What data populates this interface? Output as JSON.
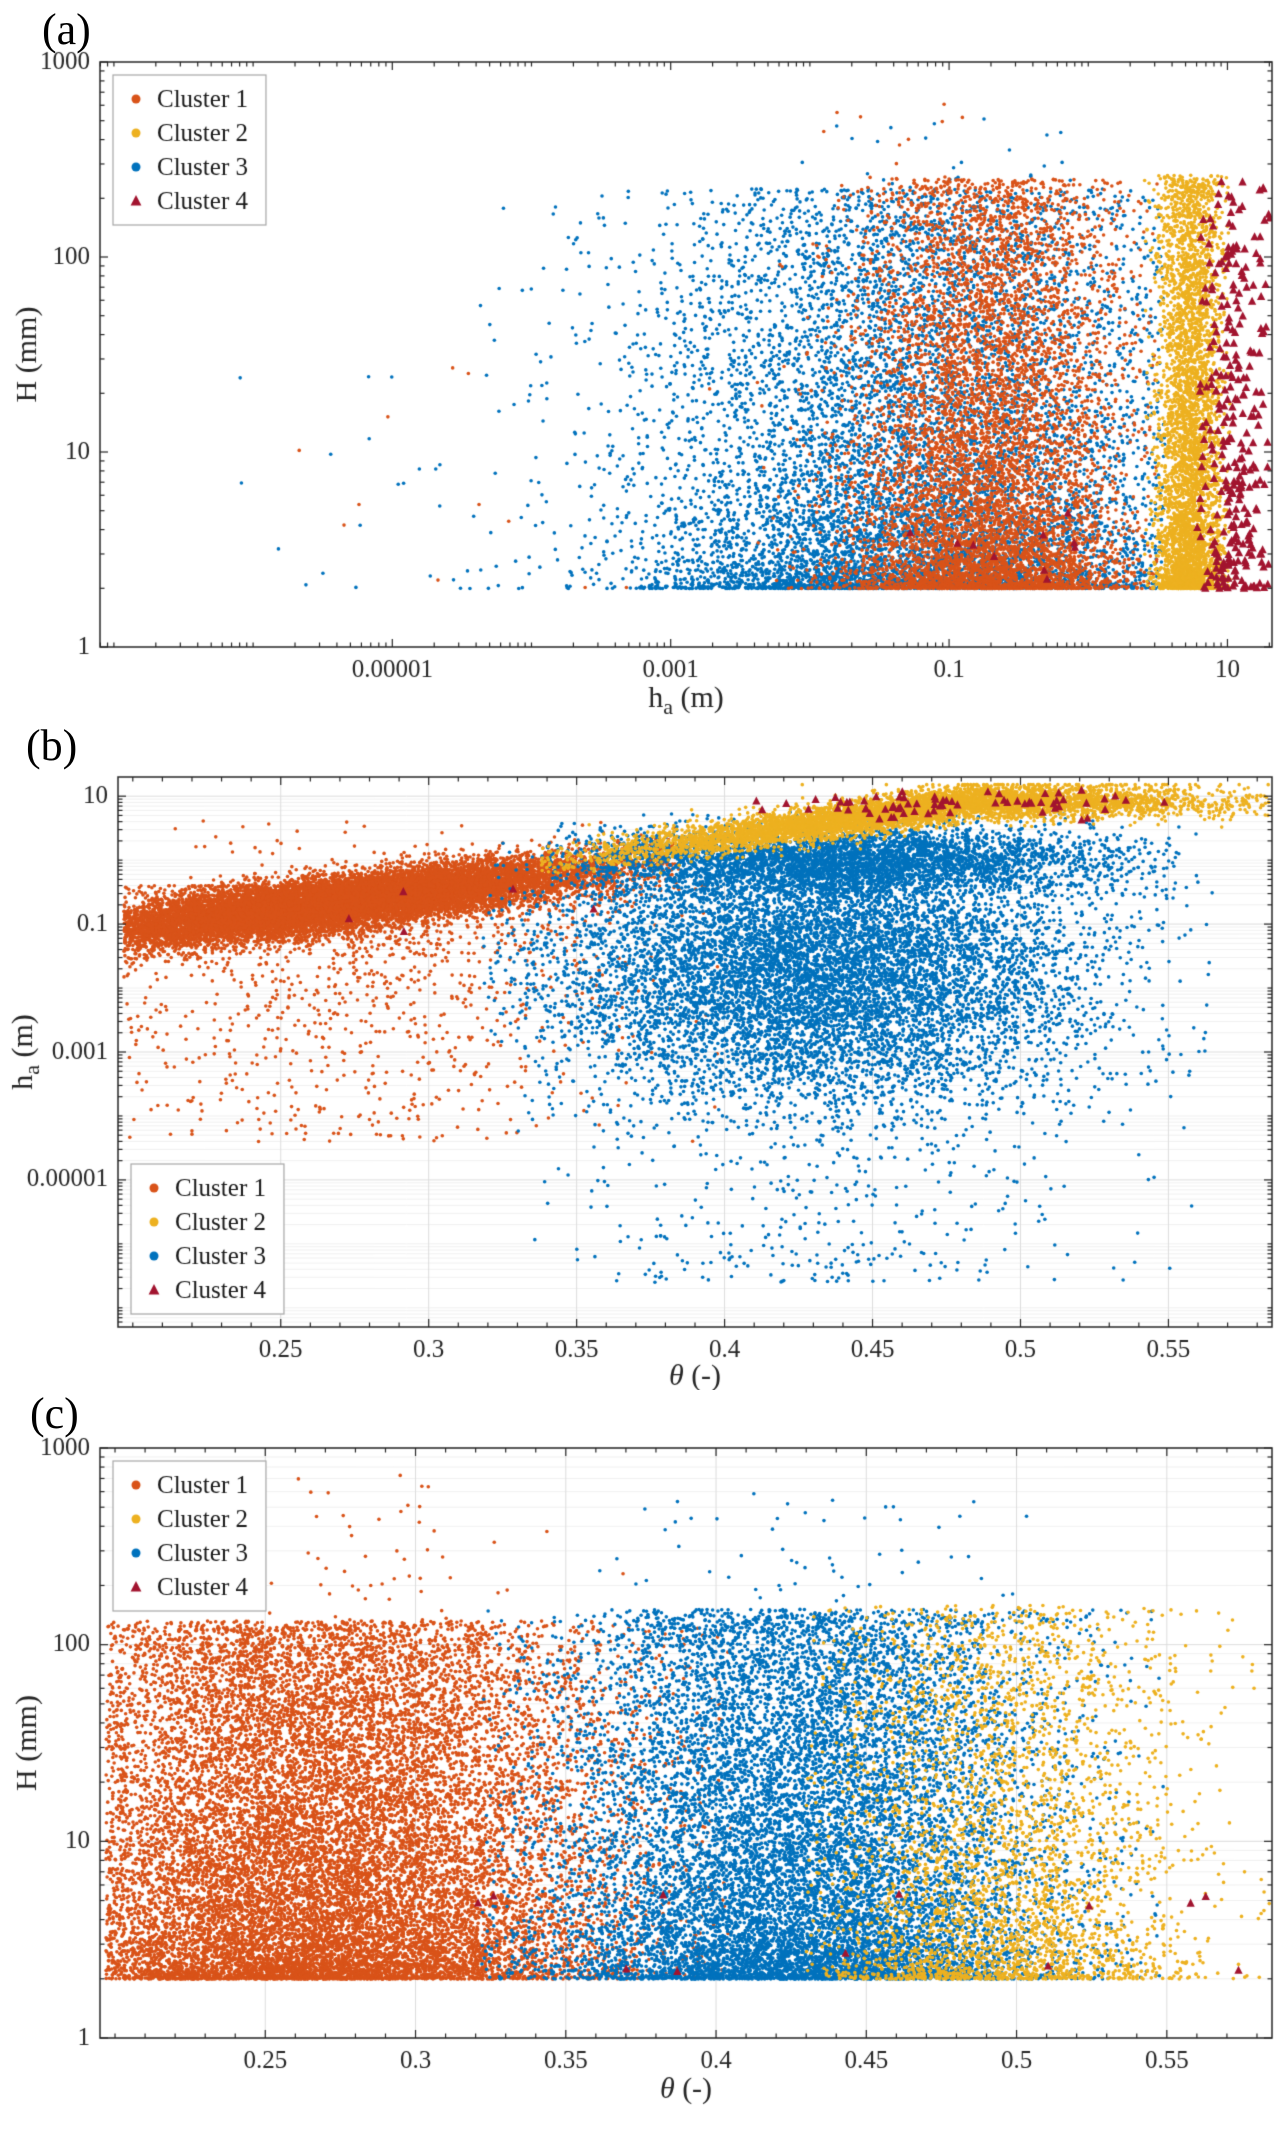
{
  "colors": {
    "cluster1": "#D95319",
    "cluster2": "#EDB120",
    "cluster3": "#0072BD",
    "cluster4": "#A2142F",
    "axis": "#262626",
    "tick_label": "#262626",
    "grid_major": "#dcdcdc",
    "grid_minor": "#f0f0f0",
    "legend_border": "#a6a6a6",
    "legend_text": "#1a1a1a"
  },
  "legend_entries": [
    {
      "label": "Cluster 1",
      "color": "cluster1",
      "marker": "dot"
    },
    {
      "label": "Cluster 2",
      "color": "cluster2",
      "marker": "dot"
    },
    {
      "label": "Cluster 3",
      "color": "cluster3",
      "marker": "dot"
    },
    {
      "label": "Cluster 4",
      "color": "cluster4",
      "marker": "triangle"
    }
  ],
  "chart_data": {
    "type": "scatter",
    "panels": [
      {
        "id": "a",
        "label": "(a)",
        "xscale": "log",
        "yscale": "log",
        "xlim_log10": [
          -7.1,
          1.32
        ],
        "ylim_log10": [
          0,
          3
        ],
        "xticks": [
          {
            "v": -5,
            "label": "0.00001"
          },
          {
            "v": -3,
            "label": "0.001"
          },
          {
            "v": -1,
            "label": "0.1"
          },
          {
            "v": 1,
            "label": "10"
          }
        ],
        "yticks": [
          {
            "v": 0,
            "label": "1"
          },
          {
            "v": 1,
            "label": "10"
          },
          {
            "v": 2,
            "label": "100"
          },
          {
            "v": 3,
            "label": "1000"
          }
        ],
        "xlabel_parts": [
          {
            "t": "h"
          },
          {
            "t": "a",
            "sub": true
          },
          {
            "t": " (m)"
          }
        ],
        "ylabel_parts": [
          {
            "t": "H (mm)"
          }
        ],
        "grid": false,
        "legend_pos": "top-left",
        "clusters": [
          {
            "name": "Cluster 3",
            "color": "cluster3",
            "marker": "dot",
            "n": 25,
            "seed": 11,
            "x": {
              "dist": "uniform",
              "min": -6.3,
              "max": -3.6
            },
            "y": {
              "dist": "powlow",
              "min": 0.3,
              "max": 1.7,
              "pow": 1.5
            }
          },
          {
            "name": "Cluster 3",
            "color": "cluster3",
            "marker": "dot",
            "n": 9000,
            "seed": 12,
            "x": {
              "dist": "normal",
              "mean": -1.25,
              "sd": 1.0,
              "clip": [
                -4.6,
                0.55
              ]
            },
            "y": {
              "dist": "powlow",
              "min": 0.3,
              "max": 2.35,
              "pow": 1.9
            }
          },
          {
            "name": "Cluster 3",
            "color": "cluster3",
            "marker": "dot",
            "n": 25,
            "seed": 13,
            "x": {
              "dist": "normal",
              "mean": -1.0,
              "sd": 0.6,
              "clip": [
                -2.5,
                0.2
              ]
            },
            "y": {
              "dist": "uniform",
              "min": 2.35,
              "max": 2.72
            }
          },
          {
            "name": "Cluster 1",
            "color": "cluster1",
            "marker": "dot",
            "n": 12,
            "seed": 14,
            "x": {
              "dist": "uniform",
              "min": -5.9,
              "max": -2.5
            },
            "y": {
              "dist": "powlow",
              "min": 0.3,
              "max": 1.5,
              "pow": 1.2
            }
          },
          {
            "name": "Cluster 1",
            "color": "cluster1",
            "marker": "dot",
            "n": 7000,
            "seed": 15,
            "x": {
              "dist": "normal",
              "mean": -0.72,
              "sd": 0.5,
              "clip": [
                -2.4,
                0.5
              ]
            },
            "y": {
              "dist": "powlow",
              "min": 0.3,
              "max": 2.4,
              "pow": 1.8
            }
          },
          {
            "name": "Cluster 1",
            "color": "cluster1",
            "marker": "dot",
            "n": 12,
            "seed": 16,
            "x": {
              "dist": "normal",
              "mean": -1.2,
              "sd": 0.5,
              "clip": [
                -2.2,
                -0.2
              ]
            },
            "y": {
              "dist": "uniform",
              "min": 2.4,
              "max": 2.82
            }
          },
          {
            "name": "Cluster 2",
            "color": "cluster2",
            "marker": "dot",
            "n": 4200,
            "seed": 17,
            "x": {
              "dist": "normal",
              "mean": 0.73,
              "sd": 0.12,
              "clip": [
                0.4,
                1.02
              ]
            },
            "y": {
              "dist": "powlow",
              "min": 0.3,
              "max": 2.42,
              "pow": 1.7
            }
          },
          {
            "name": "Cluster 4",
            "color": "cluster4",
            "marker": "triangle",
            "n": 10,
            "seed": 18,
            "x": {
              "dist": "normal",
              "mean": -0.4,
              "sd": 0.5,
              "clip": [
                -1.4,
                0.3
              ]
            },
            "y": {
              "dist": "powlow",
              "min": 0.3,
              "max": 0.8,
              "pow": 1.2
            }
          },
          {
            "name": "Cluster 4",
            "color": "cluster4",
            "marker": "triangle",
            "n": 300,
            "seed": 19,
            "x": {
              "dist": "normal",
              "mean": 1.05,
              "sd": 0.13,
              "clip": [
                0.78,
                1.31
              ]
            },
            "y": {
              "dist": "powlow",
              "min": 0.3,
              "max": 2.4,
              "pow": 1.5
            }
          }
        ]
      },
      {
        "id": "b",
        "label": "(b)",
        "xscale": "linear",
        "yscale": "log",
        "xlim": [
          0.195,
          0.585
        ],
        "ylim_log10": [
          -7.3,
          1.3
        ],
        "xticks": [
          {
            "v": 0.25,
            "label": "0.25"
          },
          {
            "v": 0.3,
            "label": "0.3"
          },
          {
            "v": 0.35,
            "label": "0.35"
          },
          {
            "v": 0.4,
            "label": "0.4"
          },
          {
            "v": 0.45,
            "label": "0.45"
          },
          {
            "v": 0.5,
            "label": "0.5"
          },
          {
            "v": 0.55,
            "label": "0.55"
          }
        ],
        "yticks": [
          {
            "v": 1,
            "label": "10"
          },
          {
            "v": -1,
            "label": "0.1"
          },
          {
            "v": -3,
            "label": "0.001"
          },
          {
            "v": -5,
            "label": "0.00001"
          }
        ],
        "xlabel_parts": [
          {
            "t": "θ",
            "italic": true
          },
          {
            "t": " (-)"
          }
        ],
        "ylabel_parts": [
          {
            "t": "h"
          },
          {
            "t": "a",
            "sub": true
          },
          {
            "t": " (m)"
          }
        ],
        "grid": true,
        "legend_pos": "bottom-left",
        "clusters": [
          {
            "name": "Cluster 1",
            "color": "cluster1",
            "marker": "dot",
            "n": 1500,
            "seed": 21,
            "x": {
              "dist": "normal",
              "mean": 0.27,
              "sd": 0.05,
              "clip": [
                0.197,
                0.4
              ]
            },
            "y": {
              "dist": "powhigh",
              "min": -4.4,
              "max": -0.4,
              "pow": 2.3
            }
          },
          {
            "name": "Cluster 1",
            "color": "cluster1",
            "marker": "dot",
            "n": 14000,
            "seed": 22,
            "x": {
              "dist": "normal",
              "mean": 0.268,
              "sd": 0.048,
              "clip": [
                0.197,
                0.385
              ]
            },
            "y": {
              "dist": "band",
              "x0": 0.2,
              "b0": -1.08,
              "b1": 5.9,
              "sd": 0.21,
              "meanClip": [
                -1.2,
                0.05
              ],
              "clip": [
                -2.6,
                0.8
              ]
            }
          },
          {
            "name": "Cluster 1",
            "color": "cluster1",
            "marker": "dot",
            "n": 22,
            "seed": 23,
            "x": {
              "dist": "normal",
              "mean": 0.245,
              "sd": 0.03,
              "clip": [
                0.2,
                0.33
              ]
            },
            "y": {
              "dist": "uniform",
              "min": 0.1,
              "max": 0.62
            }
          },
          {
            "name": "Cluster 3",
            "color": "cluster3",
            "marker": "dot",
            "n": 500,
            "seed": 24,
            "x": {
              "dist": "normal",
              "mean": 0.435,
              "sd": 0.05,
              "clip": [
                0.33,
                0.56
              ]
            },
            "y": {
              "dist": "uniform",
              "min": -6.6,
              "max": -3.0
            }
          },
          {
            "name": "Cluster 3",
            "color": "cluster3",
            "marker": "dot",
            "n": 9000,
            "seed": 25,
            "x": {
              "dist": "normal",
              "mean": 0.432,
              "sd": 0.046,
              "clip": [
                0.318,
                0.565
              ]
            },
            "y": {
              "dist": "normal",
              "mean": -1.7,
              "sd": 1.05,
              "clip": [
                -4.5,
                0.3
              ]
            }
          },
          {
            "name": "Cluster 3",
            "color": "cluster3",
            "marker": "dot",
            "n": 4000,
            "seed": 26,
            "x": {
              "dist": "normal",
              "mean": 0.44,
              "sd": 0.045,
              "clip": [
                0.34,
                0.56
              ]
            },
            "y": {
              "dist": "normal",
              "mean": 0.0,
              "sd": 0.28,
              "clip": [
                -0.6,
                0.75
              ]
            }
          },
          {
            "name": "Cluster 2",
            "color": "cluster2",
            "marker": "dot",
            "n": 6000,
            "seed": 27,
            "x": {
              "dist": "normal",
              "mean": 0.46,
              "sd": 0.05,
              "clip": [
                0.338,
                0.585
              ]
            },
            "y": {
              "dist": "band",
              "x0": 0.2,
              "b0": -0.95,
              "b1": 6.6,
              "sd": 0.13,
              "meanClip": [
                -0.3,
                0.92
              ],
              "clip": [
                -0.2,
                1.18
              ]
            }
          },
          {
            "name": "Cluster 4",
            "color": "cluster4",
            "marker": "triangle",
            "n": 5,
            "seed": 28,
            "x": {
              "dist": "uniform",
              "min": 0.24,
              "max": 0.36
            },
            "y": {
              "dist": "uniform",
              "min": -1.2,
              "max": -0.2
            }
          },
          {
            "name": "Cluster 4",
            "color": "cluster4",
            "marker": "triangle",
            "n": 70,
            "seed": 29,
            "x": {
              "dist": "normal",
              "mean": 0.475,
              "sd": 0.035,
              "clip": [
                0.405,
                0.56
              ]
            },
            "y": {
              "dist": "normal",
              "mean": 0.88,
              "sd": 0.13,
              "clip": [
                0.6,
                1.2
              ]
            }
          }
        ]
      },
      {
        "id": "c",
        "label": "(c)",
        "xscale": "linear",
        "yscale": "log",
        "xlim": [
          0.195,
          0.585
        ],
        "ylim_log10": [
          0,
          3
        ],
        "xticks": [
          {
            "v": 0.25,
            "label": "0.25"
          },
          {
            "v": 0.3,
            "label": "0.3"
          },
          {
            "v": 0.35,
            "label": "0.35"
          },
          {
            "v": 0.4,
            "label": "0.4"
          },
          {
            "v": 0.45,
            "label": "0.45"
          },
          {
            "v": 0.5,
            "label": "0.5"
          },
          {
            "v": 0.55,
            "label": "0.55"
          }
        ],
        "yticks": [
          {
            "v": 0,
            "label": "1"
          },
          {
            "v": 1,
            "label": "10"
          },
          {
            "v": 2,
            "label": "100"
          },
          {
            "v": 3,
            "label": "1000"
          }
        ],
        "xlabel_parts": [
          {
            "t": "θ",
            "italic": true
          },
          {
            "t": " (-)"
          }
        ],
        "ylabel_parts": [
          {
            "t": "H (mm)"
          }
        ],
        "grid": true,
        "legend_pos": "top-left",
        "clusters": [
          {
            "name": "Cluster 1",
            "color": "cluster1",
            "marker": "dot",
            "n": 16000,
            "seed": 31,
            "x": {
              "dist": "normal",
              "mean": 0.266,
              "sd": 0.05,
              "clip": [
                0.197,
                0.405
              ]
            },
            "y": {
              "dist": "powlow",
              "min": 0.3,
              "max": 2.12,
              "pow": 1.55
            }
          },
          {
            "name": "Cluster 1",
            "color": "cluster1",
            "marker": "dot",
            "n": 70,
            "seed": 32,
            "x": {
              "dist": "normal",
              "mean": 0.27,
              "sd": 0.05,
              "clip": [
                0.2,
                0.38
              ]
            },
            "y": {
              "dist": "uniform",
              "min": 2.1,
              "max": 2.92
            }
          },
          {
            "name": "Cluster 3",
            "color": "cluster3",
            "marker": "dot",
            "n": 12500,
            "seed": 33,
            "x": {
              "dist": "normal",
              "mean": 0.428,
              "sd": 0.042,
              "clip": [
                0.322,
                0.55
              ]
            },
            "y": {
              "dist": "powlow",
              "min": 0.3,
              "max": 2.18,
              "pow": 1.6
            }
          },
          {
            "name": "Cluster 3",
            "color": "cluster3",
            "marker": "dot",
            "n": 60,
            "seed": 34,
            "x": {
              "dist": "normal",
              "mean": 0.42,
              "sd": 0.045,
              "clip": [
                0.33,
                0.53
              ]
            },
            "y": {
              "dist": "uniform",
              "min": 2.15,
              "max": 2.78
            }
          },
          {
            "name": "Cluster 2",
            "color": "cluster2",
            "marker": "dot",
            "n": 3200,
            "seed": 35,
            "x": {
              "dist": "normal",
              "mean": 0.497,
              "sd": 0.032,
              "clip": [
                0.43,
                0.585
              ]
            },
            "y": {
              "dist": "powlow",
              "min": 0.3,
              "max": 2.2,
              "pow": 1.7
            }
          },
          {
            "name": "Cluster 4",
            "color": "cluster4",
            "marker": "triangle",
            "n": 12,
            "seed": 36,
            "x": {
              "dist": "uniform",
              "min": 0.3,
              "max": 0.575
            },
            "y": {
              "dist": "powlow",
              "min": 0.3,
              "max": 0.75,
              "pow": 1.2
            }
          }
        ]
      }
    ]
  }
}
